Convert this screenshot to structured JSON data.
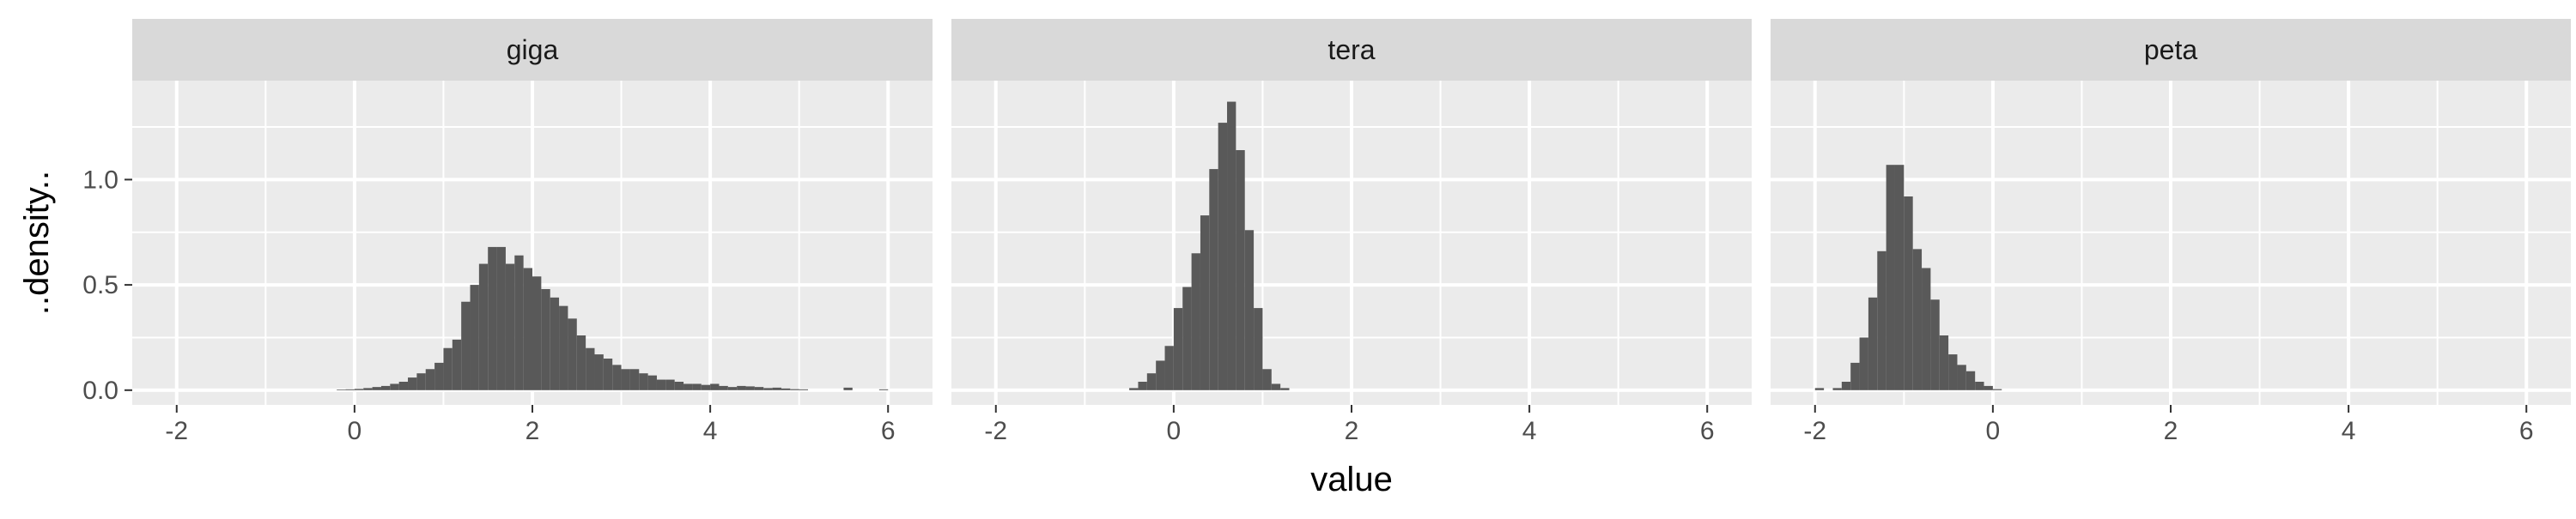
{
  "chart_data": {
    "type": "bar",
    "subtype": "faceted-histogram",
    "xlabel": "value",
    "ylabel": "..density..",
    "xlim": [
      -2.5,
      6.5
    ],
    "ylim": [
      -0.07,
      1.47
    ],
    "x_ticks": [
      -2,
      0,
      2,
      4,
      6
    ],
    "x_tick_labels": [
      "-2",
      "0",
      "2",
      "4",
      "6"
    ],
    "y_ticks": [
      0.0,
      0.5,
      1.0
    ],
    "y_tick_labels": [
      "0.0",
      "0.5",
      "1.0"
    ],
    "bin_width": 0.1,
    "grid": true,
    "bar_color": "#595959",
    "panel_background": "#ebebeb",
    "strip_background": "#d9d9d9",
    "gridline_color": "#ffffff",
    "panels": [
      {
        "title": "giga",
        "bins": [
          [
            -0.2,
            0.003
          ],
          [
            -0.1,
            0.004
          ],
          [
            0.0,
            0.006
          ],
          [
            0.1,
            0.01
          ],
          [
            0.2,
            0.015
          ],
          [
            0.3,
            0.02
          ],
          [
            0.4,
            0.03
          ],
          [
            0.5,
            0.04
          ],
          [
            0.6,
            0.06
          ],
          [
            0.7,
            0.08
          ],
          [
            0.8,
            0.1
          ],
          [
            0.9,
            0.13
          ],
          [
            1.0,
            0.2
          ],
          [
            1.1,
            0.24
          ],
          [
            1.2,
            0.42
          ],
          [
            1.3,
            0.5
          ],
          [
            1.4,
            0.6
          ],
          [
            1.5,
            0.68
          ],
          [
            1.6,
            0.68
          ],
          [
            1.7,
            0.6
          ],
          [
            1.8,
            0.64
          ],
          [
            1.9,
            0.58
          ],
          [
            2.0,
            0.54
          ],
          [
            2.1,
            0.48
          ],
          [
            2.2,
            0.44
          ],
          [
            2.3,
            0.4
          ],
          [
            2.4,
            0.34
          ],
          [
            2.5,
            0.26
          ],
          [
            2.6,
            0.2
          ],
          [
            2.7,
            0.17
          ],
          [
            2.8,
            0.15
          ],
          [
            2.9,
            0.12
          ],
          [
            3.0,
            0.1
          ],
          [
            3.1,
            0.1
          ],
          [
            3.2,
            0.08
          ],
          [
            3.3,
            0.07
          ],
          [
            3.4,
            0.05
          ],
          [
            3.5,
            0.05
          ],
          [
            3.6,
            0.04
          ],
          [
            3.7,
            0.03
          ],
          [
            3.8,
            0.03
          ],
          [
            3.9,
            0.025
          ],
          [
            4.0,
            0.03
          ],
          [
            4.1,
            0.02
          ],
          [
            4.2,
            0.015
          ],
          [
            4.3,
            0.02
          ],
          [
            4.4,
            0.018
          ],
          [
            4.5,
            0.015
          ],
          [
            4.6,
            0.01
          ],
          [
            4.7,
            0.012
          ],
          [
            4.8,
            0.008
          ],
          [
            4.9,
            0.005
          ],
          [
            5.0,
            0.004
          ],
          [
            5.5,
            0.012
          ],
          [
            5.9,
            0.004
          ]
        ]
      },
      {
        "title": "tera",
        "bins": [
          [
            -0.5,
            0.01
          ],
          [
            -0.4,
            0.04
          ],
          [
            -0.3,
            0.08
          ],
          [
            -0.2,
            0.14
          ],
          [
            -0.1,
            0.21
          ],
          [
            0.0,
            0.39
          ],
          [
            0.1,
            0.49
          ],
          [
            0.2,
            0.65
          ],
          [
            0.3,
            0.83
          ],
          [
            0.4,
            1.05
          ],
          [
            0.5,
            1.27
          ],
          [
            0.6,
            1.37
          ],
          [
            0.7,
            1.14
          ],
          [
            0.8,
            0.76
          ],
          [
            0.9,
            0.39
          ],
          [
            1.0,
            0.1
          ],
          [
            1.1,
            0.03
          ],
          [
            1.2,
            0.01
          ]
        ]
      },
      {
        "title": "peta",
        "bins": [
          [
            -2.0,
            0.01
          ],
          [
            -1.8,
            0.01
          ],
          [
            -1.7,
            0.04
          ],
          [
            -1.6,
            0.13
          ],
          [
            -1.5,
            0.25
          ],
          [
            -1.4,
            0.44
          ],
          [
            -1.3,
            0.66
          ],
          [
            -1.2,
            1.07
          ],
          [
            -1.1,
            1.07
          ],
          [
            -1.0,
            0.92
          ],
          [
            -0.9,
            0.67
          ],
          [
            -0.8,
            0.58
          ],
          [
            -0.7,
            0.43
          ],
          [
            -0.6,
            0.26
          ],
          [
            -0.5,
            0.17
          ],
          [
            -0.4,
            0.12
          ],
          [
            -0.3,
            0.09
          ],
          [
            -0.2,
            0.04
          ],
          [
            -0.1,
            0.02
          ],
          [
            0.0,
            0.005
          ]
        ]
      }
    ]
  }
}
